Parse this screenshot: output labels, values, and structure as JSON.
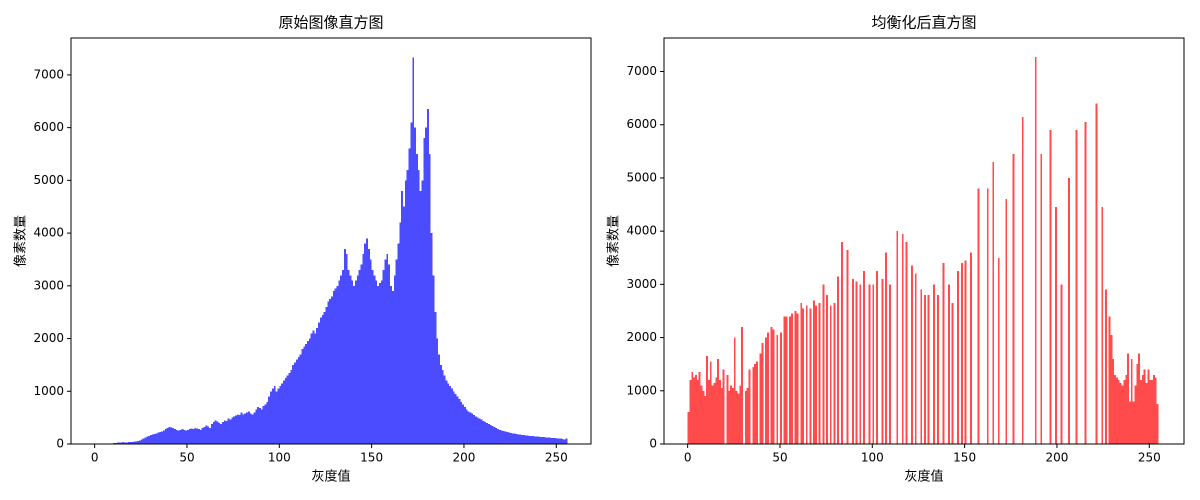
{
  "chart_data": [
    {
      "type": "histogram",
      "title": "原始图像直方图",
      "x_label": "灰度值",
      "y_label": "像素数量",
      "color": "#4b4bff",
      "bins": [
        0,
        1,
        2,
        3,
        4,
        5,
        6,
        7,
        8,
        9,
        10,
        11,
        12,
        13,
        14,
        15,
        16,
        17,
        18,
        19,
        20,
        21,
        22,
        23,
        24,
        25,
        26,
        27,
        28,
        29,
        30,
        31,
        32,
        33,
        34,
        35,
        36,
        37,
        38,
        39,
        40,
        41,
        42,
        43,
        44,
        45,
        46,
        47,
        48,
        49,
        50,
        51,
        52,
        53,
        54,
        55,
        56,
        57,
        58,
        59,
        60,
        61,
        62,
        63,
        64,
        65,
        66,
        67,
        68,
        69,
        70,
        71,
        72,
        73,
        74,
        75,
        76,
        77,
        78,
        79,
        80,
        81,
        82,
        83,
        84,
        85,
        86,
        87,
        88,
        89,
        90,
        91,
        92,
        93,
        94,
        95,
        96,
        97,
        98,
        99,
        100,
        101,
        102,
        103,
        104,
        105,
        106,
        107,
        108,
        109,
        110,
        111,
        112,
        113,
        114,
        115,
        116,
        117,
        118,
        119,
        120,
        121,
        122,
        123,
        124,
        125,
        126,
        127,
        128,
        129,
        130,
        131,
        132,
        133,
        134,
        135,
        136,
        137,
        138,
        139,
        140,
        141,
        142,
        143,
        144,
        145,
        146,
        147,
        148,
        149,
        150,
        151,
        152,
        153,
        154,
        155,
        156,
        157,
        158,
        159,
        160,
        161,
        162,
        163,
        164,
        165,
        166,
        167,
        168,
        169,
        170,
        171,
        172,
        173,
        174,
        175,
        176,
        177,
        178,
        179,
        180,
        181,
        182,
        183,
        184,
        185,
        186,
        187,
        188,
        189,
        190,
        191,
        192,
        193,
        194,
        195,
        196,
        197,
        198,
        199,
        200,
        201,
        202,
        203,
        204,
        205,
        206,
        207,
        208,
        209,
        210,
        211,
        212,
        213,
        214,
        215,
        216,
        217,
        218,
        219,
        220,
        221,
        222,
        223,
        224,
        225,
        226,
        227,
        228,
        229,
        230,
        231,
        232,
        233,
        234,
        235,
        236,
        237,
        238,
        239,
        240,
        241,
        242,
        243,
        244,
        245,
        246,
        247,
        248,
        249,
        250,
        251,
        252,
        253,
        254,
        255,
        256
      ],
      "values": [
        0,
        0,
        0,
        0,
        0,
        0,
        0,
        5,
        8,
        10,
        15,
        20,
        25,
        30,
        30,
        35,
        30,
        30,
        35,
        40,
        40,
        45,
        50,
        60,
        70,
        90,
        100,
        120,
        140,
        150,
        170,
        180,
        190,
        200,
        220,
        230,
        240,
        260,
        280,
        300,
        320,
        310,
        300,
        280,
        270,
        260,
        270,
        280,
        270,
        260,
        270,
        280,
        290,
        280,
        300,
        290,
        280,
        270,
        300,
        320,
        350,
        330,
        300,
        380,
        420,
        450,
        430,
        400,
        380,
        420,
        450,
        440,
        480,
        460,
        500,
        520,
        540,
        560,
        550,
        600,
        560,
        580,
        600,
        620,
        580,
        560,
        600,
        650,
        700,
        680,
        650,
        720,
        750,
        800,
        900,
        1000,
        1050,
        1100,
        1000,
        1050,
        1100,
        1150,
        1200,
        1250,
        1300,
        1350,
        1400,
        1500,
        1550,
        1600,
        1650,
        1700,
        1800,
        1850,
        1900,
        1950,
        2000,
        2100,
        2150,
        2100,
        2200,
        2300,
        2400,
        2450,
        2500,
        2600,
        2700,
        2750,
        2800,
        2900,
        2950,
        3000,
        3100,
        3200,
        3300,
        3700,
        3600,
        3300,
        3200,
        3100,
        3000,
        3100,
        3200,
        3300,
        3400,
        3600,
        3800,
        3900,
        3700,
        3500,
        3300,
        3200,
        3100,
        3000,
        3050,
        3100,
        3300,
        3500,
        3600,
        3400,
        3000,
        2900,
        3200,
        3500,
        3800,
        4200,
        4800,
        4500,
        5000,
        5200,
        5600,
        6100,
        7330,
        6000,
        5500,
        5200,
        4800,
        5000,
        5800,
        6000,
        6350,
        5500,
        4000,
        3200,
        2500,
        2000,
        1700,
        1500,
        1400,
        1300,
        1200,
        1150,
        1100,
        1050,
        1000,
        950,
        900,
        850,
        800,
        750,
        700,
        650,
        620,
        600,
        580,
        550,
        520,
        500,
        480,
        460,
        440,
        420,
        400,
        380,
        360,
        340,
        320,
        300,
        280,
        270,
        260,
        250,
        240,
        230,
        220,
        210,
        200,
        200,
        190,
        180,
        180,
        170,
        170,
        160,
        160,
        155,
        150,
        150,
        145,
        140,
        140,
        135,
        130,
        130,
        125,
        120,
        120,
        115,
        110,
        110,
        105,
        100,
        100,
        95,
        90,
        100
      ],
      "xlim": [
        -12.8,
        268.8
      ],
      "xticks": [
        0,
        50,
        100,
        150,
        200,
        250
      ],
      "ylim": [
        0,
        7700
      ],
      "yticks": [
        0,
        1000,
        2000,
        3000,
        4000,
        5000,
        6000,
        7000
      ]
    },
    {
      "type": "histogram",
      "title": "均衡化后直方图",
      "x_label": "灰度值",
      "y_label": "像素数量",
      "color": "#ff4b4b",
      "bins": [
        0,
        1,
        2,
        3,
        4,
        5,
        6,
        7,
        8,
        9,
        10,
        11,
        12,
        13,
        14,
        15,
        16,
        17,
        18,
        19,
        20,
        21,
        22,
        23,
        24,
        25,
        26,
        27,
        28,
        29,
        30,
        31,
        32,
        33,
        34,
        35,
        36,
        37,
        38,
        39,
        40,
        41,
        42,
        43,
        44,
        45,
        46,
        47,
        48,
        49,
        50,
        51,
        52,
        53,
        54,
        55,
        56,
        57,
        58,
        59,
        60,
        61,
        62,
        63,
        64,
        65,
        66,
        67,
        68,
        69,
        70,
        71,
        72,
        73,
        74,
        75,
        76,
        77,
        78,
        79,
        80,
        81,
        82,
        83,
        84,
        85,
        86,
        87,
        88,
        89,
        90,
        91,
        92,
        93,
        94,
        95,
        96,
        97,
        98,
        99,
        100,
        101,
        102,
        103,
        104,
        105,
        106,
        107,
        108,
        109,
        110,
        111,
        112,
        113,
        114,
        115,
        116,
        117,
        118,
        119,
        120,
        121,
        122,
        123,
        124,
        125,
        126,
        127,
        128,
        129,
        130,
        131,
        132,
        133,
        134,
        135,
        136,
        137,
        138,
        139,
        140,
        141,
        142,
        143,
        144,
        145,
        146,
        147,
        148,
        149,
        150,
        151,
        152,
        153,
        154,
        155,
        156,
        157,
        158,
        159,
        160,
        161,
        162,
        163,
        164,
        165,
        166,
        167,
        168,
        169,
        170,
        171,
        172,
        173,
        174,
        175,
        176,
        177,
        178,
        179,
        180,
        181,
        182,
        183,
        184,
        185,
        186,
        187,
        188,
        189,
        190,
        191,
        192,
        193,
        194,
        195,
        196,
        197,
        198,
        199,
        200,
        201,
        202,
        203,
        204,
        205,
        206,
        207,
        208,
        209,
        210,
        211,
        212,
        213,
        214,
        215,
        216,
        217,
        218,
        219,
        220,
        221,
        222,
        223,
        224,
        225,
        226,
        227,
        228,
        229,
        230,
        231,
        232,
        233,
        234,
        235,
        236,
        237,
        238,
        239,
        240,
        241,
        242,
        243,
        244,
        245,
        246,
        247,
        248,
        249,
        250,
        251,
        252,
        253,
        254,
        255,
        256
      ],
      "values": [
        600,
        1200,
        1350,
        1250,
        1300,
        1200,
        1350,
        1100,
        1000,
        900,
        1650,
        1200,
        1550,
        1100,
        1150,
        1250,
        1600,
        1200,
        1050,
        1400,
        0,
        1300,
        1000,
        1100,
        1050,
        2000,
        1000,
        950,
        1100,
        2200,
        0,
        1000,
        1050,
        1400,
        0,
        1450,
        1500,
        1550,
        0,
        1700,
        1900,
        0,
        2000,
        2100,
        0,
        2200,
        2150,
        0,
        2050,
        0,
        2100,
        0,
        2400,
        2400,
        0,
        2400,
        2450,
        0,
        2500,
        2450,
        0,
        2650,
        2550,
        0,
        2600,
        0,
        2550,
        0,
        2700,
        2600,
        0,
        2650,
        0,
        3000,
        0,
        2800,
        0,
        2600,
        0,
        2650,
        0,
        3150,
        0,
        3800,
        0,
        0,
        3650,
        0,
        0,
        3100,
        0,
        3050,
        0,
        3000,
        0,
        3250,
        0,
        0,
        3000,
        0,
        3000,
        0,
        3250,
        0,
        0,
        3100,
        0,
        3600,
        0,
        3000,
        0,
        0,
        0,
        4000,
        0,
        0,
        3950,
        0,
        3800,
        0,
        0,
        3350,
        0,
        3200,
        0,
        0,
        2900,
        0,
        2800,
        0,
        2800,
        0,
        0,
        3000,
        0,
        2800,
        0,
        0,
        3400,
        0,
        0,
        3000,
        0,
        2650,
        0,
        0,
        3250,
        0,
        3400,
        0,
        3450,
        0,
        0,
        3600,
        0,
        0,
        0,
        4800,
        0,
        0,
        0,
        0,
        4800,
        0,
        0,
        5300,
        0,
        0,
        3500,
        0,
        0,
        0,
        4600,
        0,
        0,
        0,
        5450,
        0,
        0,
        0,
        0,
        6150,
        0,
        0,
        0,
        0,
        0,
        0,
        7270,
        0,
        0,
        5450,
        0,
        0,
        0,
        0,
        5900,
        0,
        0,
        4450,
        0,
        0,
        3000,
        0,
        0,
        0,
        5000,
        0,
        0,
        0,
        5900,
        0,
        0,
        0,
        0,
        6050,
        0,
        0,
        0,
        0,
        0,
        6400,
        0,
        0,
        4450,
        0,
        2900,
        0,
        2400,
        2050,
        1600,
        1300,
        1250,
        1200,
        1150,
        1100,
        1200,
        1300,
        1700,
        800,
        1600,
        800,
        1100,
        1500,
        1700,
        1200,
        1300,
        1400,
        1150,
        1400,
        1200,
        1200,
        1300,
        1250,
        750,
        0
      ],
      "xlim": [
        -12.8,
        268.8
      ],
      "xticks": [
        0,
        50,
        100,
        150,
        200,
        250
      ],
      "ylim": [
        0,
        7630
      ],
      "yticks": [
        0,
        1000,
        2000,
        3000,
        4000,
        5000,
        6000,
        7000
      ]
    }
  ]
}
